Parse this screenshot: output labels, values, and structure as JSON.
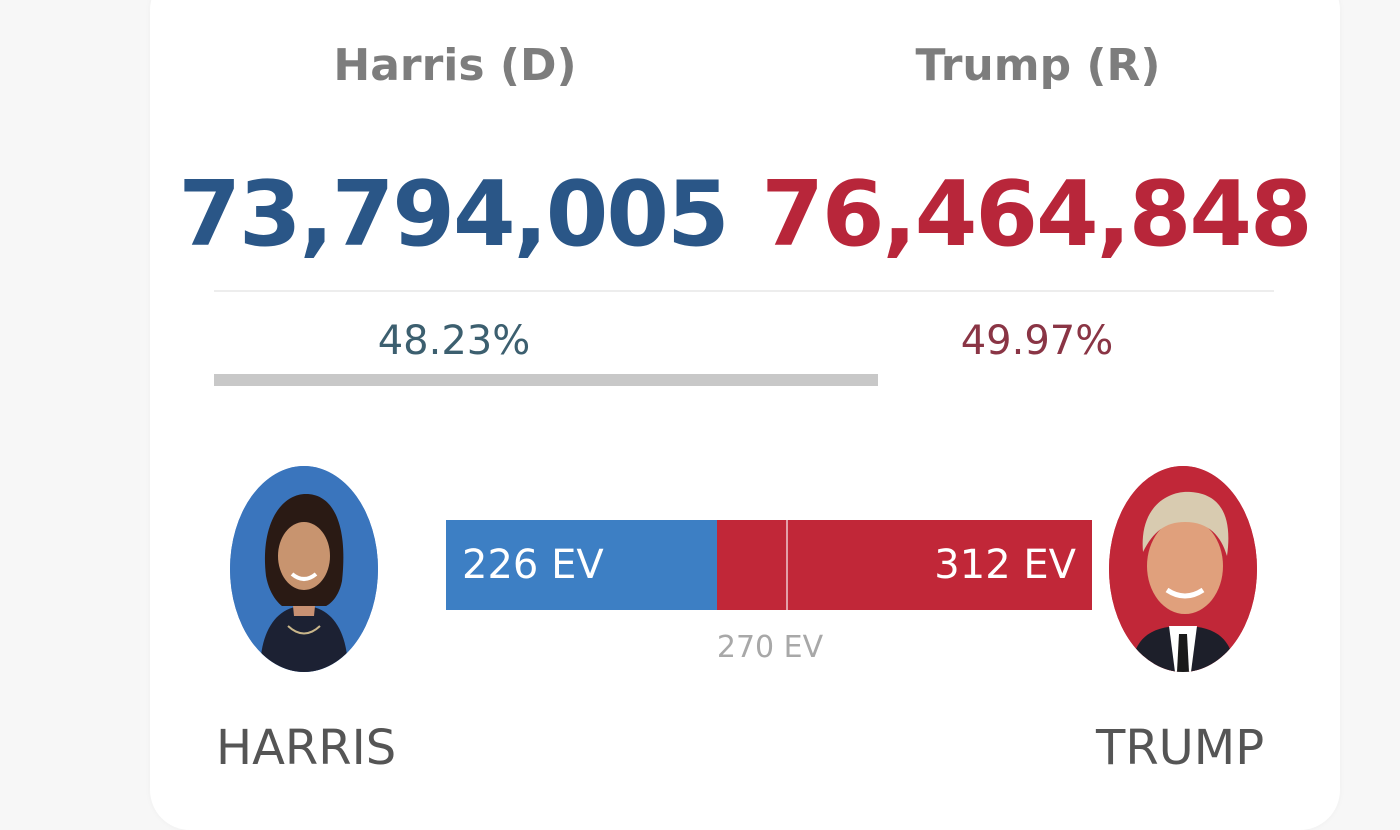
{
  "colors": {
    "dem_text": "#2a5687",
    "rep_text": "#b8263a",
    "dem_pct": "#3c5f6f",
    "rep_pct": "#8a3545",
    "dem_bar": "#3d7fc4",
    "rep_bar": "#c12738"
  },
  "harris": {
    "header": "Harris (D)",
    "votes": "73,794,005",
    "percent": "48.23%",
    "ev_label": "226 EV",
    "ev": 226,
    "name": "HARRIS"
  },
  "trump": {
    "header": "Trump (R)",
    "votes": "76,464,848",
    "percent": "49.97%",
    "ev_label": "312 EV",
    "ev": 312,
    "name": "TRUMP"
  },
  "threshold": {
    "label": "270 EV",
    "ev": 270
  },
  "popular_bar_fraction": 0.6264
}
